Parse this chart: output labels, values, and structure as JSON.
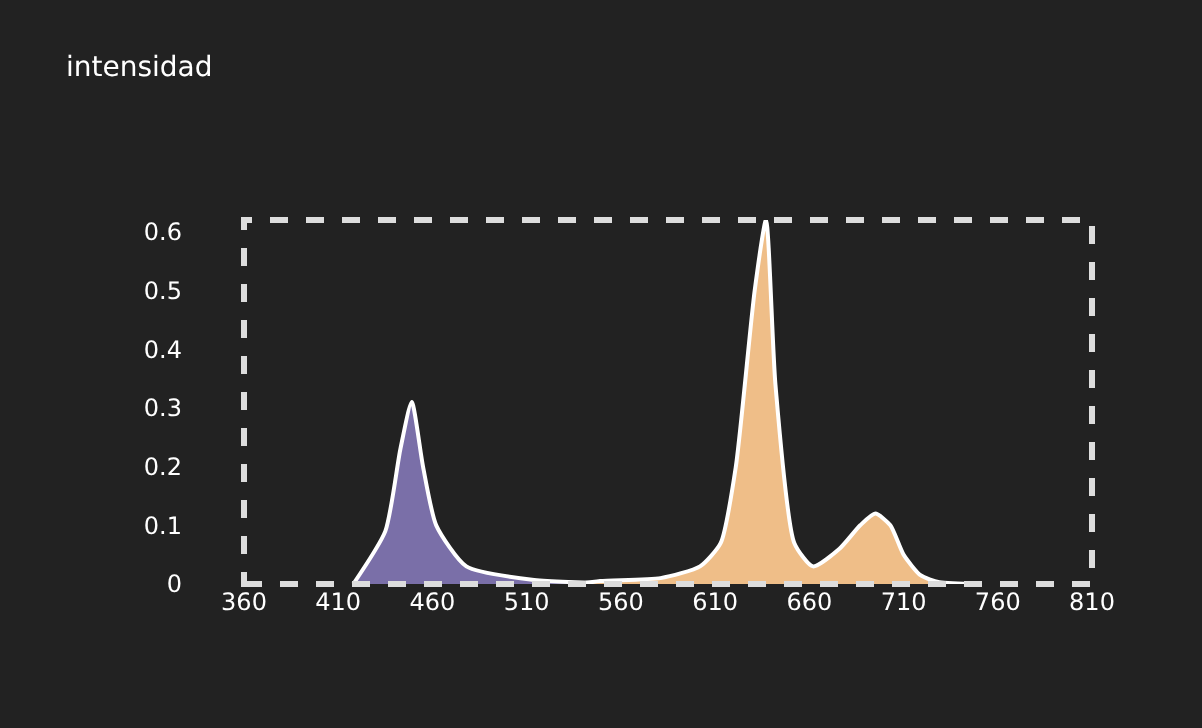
{
  "chart_data": {
    "type": "area",
    "annotations": [
      "intensidad"
    ],
    "xlim": [
      360,
      810
    ],
    "xticks": [
      360,
      410,
      460,
      510,
      560,
      610,
      660,
      710,
      760,
      810
    ],
    "ylim": [
      0,
      0.62
    ],
    "yticks": [
      0,
      0.1,
      0.2,
      0.3,
      0.4,
      0.5,
      0.6
    ],
    "series": [
      {
        "color": "#7a6fa8",
        "x": [
          418,
          435,
          443,
          449,
          455,
          462,
          478,
          514,
          567
        ],
        "values": [
          0,
          0.09,
          0.23,
          0.31,
          0.2,
          0.1,
          0.03,
          0.007,
          0
        ]
      },
      {
        "color": "#efbe88",
        "x": [
          538,
          549,
          581,
          602,
          613,
          621,
          631,
          637,
          642,
          652,
          662,
          676,
          687,
          695,
          703,
          710,
          719,
          729,
          750
        ],
        "values": [
          0,
          0.005,
          0.01,
          0.03,
          0.07,
          0.2,
          0.5,
          0.62,
          0.34,
          0.07,
          0.03,
          0.06,
          0.1,
          0.12,
          0.1,
          0.05,
          0.015,
          0.003,
          0
        ]
      }
    ]
  }
}
